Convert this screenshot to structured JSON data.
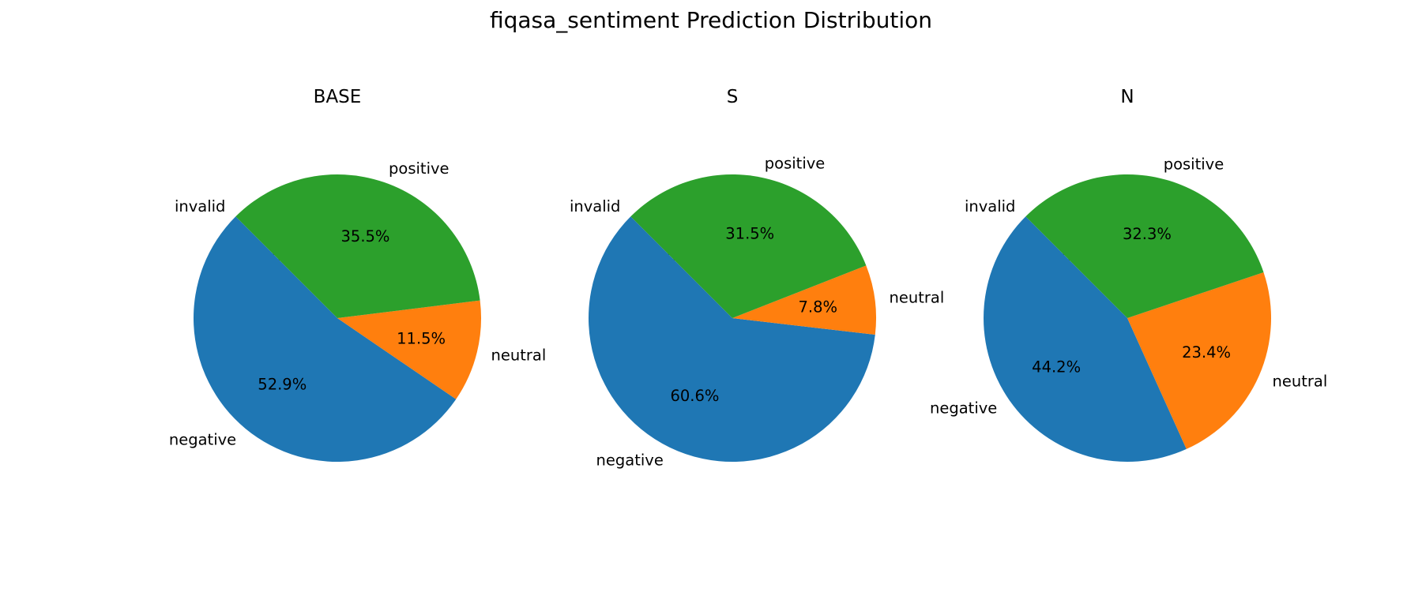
{
  "figure_title": "fiqasa_sentiment Prediction Distribution",
  "colors": {
    "negative": "#1f77b4",
    "neutral": "#ff7f0e",
    "positive": "#2ca02c",
    "invalid": "#d62728"
  },
  "chart_data": [
    {
      "type": "pie",
      "title": "BASE",
      "start_angle_deg": 135,
      "slices": [
        {
          "label": "invalid",
          "value": 0.0,
          "pct_text": "0.0%"
        },
        {
          "label": "negative",
          "value": 52.9,
          "pct_text": "52.9%"
        },
        {
          "label": "neutral",
          "value": 11.5,
          "pct_text": "11.5%"
        },
        {
          "label": "positive",
          "value": 35.5,
          "pct_text": "35.5%"
        }
      ]
    },
    {
      "type": "pie",
      "title": "S",
      "start_angle_deg": 135,
      "slices": [
        {
          "label": "invalid",
          "value": 0.0,
          "pct_text": "0.0%"
        },
        {
          "label": "negative",
          "value": 60.6,
          "pct_text": "60.6%"
        },
        {
          "label": "neutral",
          "value": 7.8,
          "pct_text": "7.8%"
        },
        {
          "label": "positive",
          "value": 31.5,
          "pct_text": "31.5%"
        }
      ]
    },
    {
      "type": "pie",
      "title": "N",
      "start_angle_deg": 135,
      "slices": [
        {
          "label": "invalid",
          "value": 0.0,
          "pct_text": "0.0%"
        },
        {
          "label": "negative",
          "value": 44.2,
          "pct_text": "44.2%"
        },
        {
          "label": "neutral",
          "value": 23.4,
          "pct_text": "23.4%"
        },
        {
          "label": "positive",
          "value": 32.3,
          "pct_text": "32.3%"
        }
      ]
    }
  ]
}
